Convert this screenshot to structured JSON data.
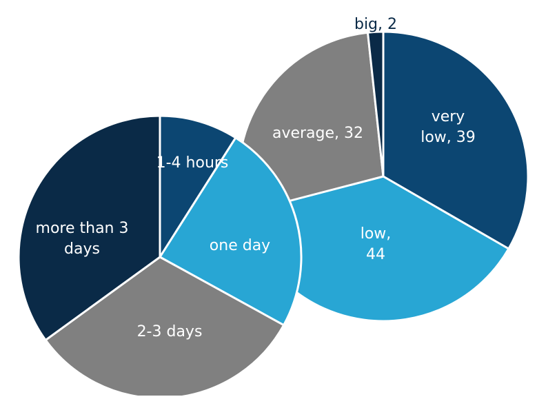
{
  "chart_data": [
    {
      "type": "pie",
      "categories": [
        "very low",
        "low",
        "average",
        "big"
      ],
      "values": [
        39,
        44,
        32,
        2
      ],
      "data_labels": [
        "very low, 39",
        "low, 44",
        "average, 32",
        "big, 2"
      ],
      "colors": [
        "#0c4672",
        "#28a6d4",
        "#808080",
        "#0a2a47"
      ],
      "start_angle_deg": 0
    },
    {
      "type": "pie",
      "categories": [
        "1-4 hours",
        "one day",
        "2-3 days",
        "more than 3 days"
      ],
      "values": [
        9,
        24,
        32,
        35
      ],
      "data_labels": [
        "1-4 hours",
        "one day",
        "2-3 days",
        "more than 3 days"
      ],
      "colors": [
        "#0c4672",
        "#28a6d4",
        "#808080",
        "#0a2a47"
      ],
      "start_angle_deg": 0
    }
  ]
}
